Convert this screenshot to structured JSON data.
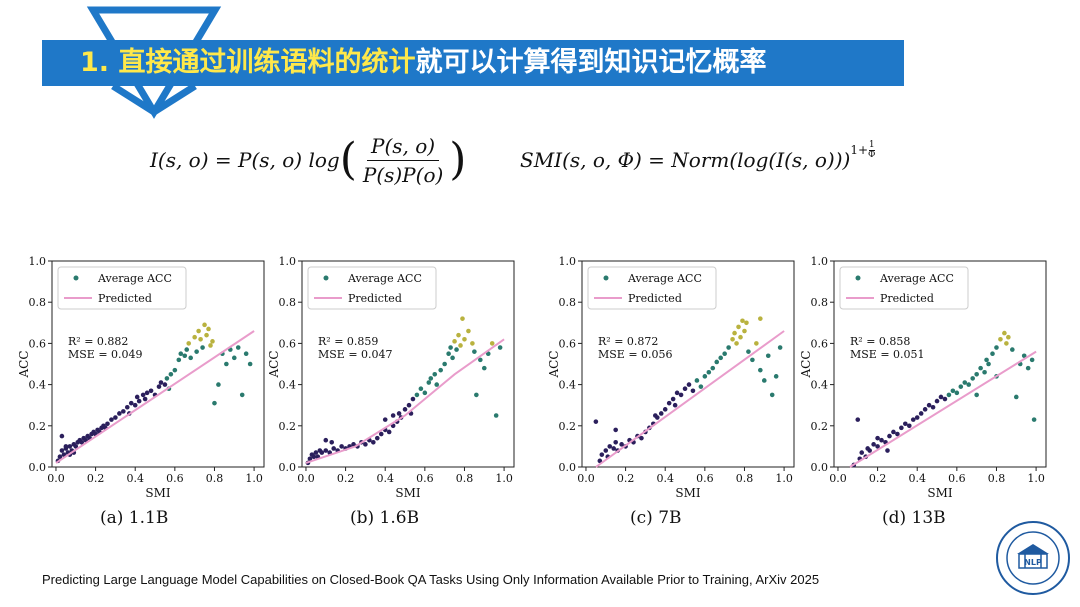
{
  "header": {
    "title_highlight": "1. 直接通过训练语料的统计",
    "title_rest": "就可以计算得到知识记忆概率"
  },
  "formulas": {
    "pmi": {
      "lhs": "I(s, o) = P(s, o) log",
      "numerator": "P(s, o)",
      "denominator": "P(s)P(o)"
    },
    "smi": {
      "lhs": "SMI(s, o, Φ) = Norm(log(I(s, o)))",
      "exponent_base": "1+",
      "exponent_num": "1",
      "exponent_den": "Φ"
    }
  },
  "footer": {
    "citation": "Predicting Large Language Model Capabilities on Closed-Book QA Tasks Using Only Information Available Prior to Training, ArXiv 2025"
  },
  "logo": {
    "text": "NLP"
  },
  "colors": {
    "banner": "#1f78c8",
    "highlight_text": "#ffe84a",
    "predicted_line": "#e99ccb",
    "point_low": "#2b1f5c",
    "point_mid": "#2a7a6e",
    "point_high": "#b9b23f"
  },
  "chart_data": [
    {
      "type": "scatter",
      "caption": "(a) 1.1B",
      "xlabel": "SMI",
      "ylabel": "ACC",
      "xlim": [
        -0.02,
        1.05
      ],
      "ylim": [
        0.0,
        1.0
      ],
      "xticks": [
        "0.0",
        "0.2",
        "0.4",
        "0.6",
        "0.8",
        "1.0"
      ],
      "yticks": [
        "0.0",
        "0.2",
        "0.4",
        "0.6",
        "0.8",
        "1.0"
      ],
      "legend": [
        "Average ACC",
        "Predicted"
      ],
      "legend_position": "top-left",
      "annotations": [
        "R² = 0.882",
        "MSE = 0.049"
      ],
      "predicted": [
        [
          0.0,
          0.02
        ],
        [
          1.0,
          0.66
        ]
      ],
      "points": [
        [
          0.01,
          0.03
        ],
        [
          0.02,
          0.05
        ],
        [
          0.03,
          0.08
        ],
        [
          0.04,
          0.06
        ],
        [
          0.05,
          0.09
        ],
        [
          0.06,
          0.07
        ],
        [
          0.07,
          0.1
        ],
        [
          0.08,
          0.08
        ],
        [
          0.09,
          0.11
        ],
        [
          0.1,
          0.1
        ],
        [
          0.11,
          0.12
        ],
        [
          0.12,
          0.13
        ],
        [
          0.13,
          0.12
        ],
        [
          0.14,
          0.14
        ],
        [
          0.15,
          0.13
        ],
        [
          0.16,
          0.15
        ],
        [
          0.17,
          0.14
        ],
        [
          0.18,
          0.16
        ],
        [
          0.19,
          0.17
        ],
        [
          0.2,
          0.16
        ],
        [
          0.21,
          0.18
        ],
        [
          0.22,
          0.17
        ],
        [
          0.23,
          0.19
        ],
        [
          0.24,
          0.2
        ],
        [
          0.25,
          0.19
        ],
        [
          0.26,
          0.21
        ],
        [
          0.28,
          0.23
        ],
        [
          0.3,
          0.24
        ],
        [
          0.32,
          0.26
        ],
        [
          0.34,
          0.27
        ],
        [
          0.36,
          0.29
        ],
        [
          0.37,
          0.26
        ],
        [
          0.38,
          0.31
        ],
        [
          0.4,
          0.3
        ],
        [
          0.41,
          0.34
        ],
        [
          0.42,
          0.32
        ],
        [
          0.44,
          0.35
        ],
        [
          0.45,
          0.33
        ],
        [
          0.46,
          0.36
        ],
        [
          0.48,
          0.37
        ],
        [
          0.5,
          0.35
        ],
        [
          0.52,
          0.39
        ],
        [
          0.53,
          0.41
        ],
        [
          0.55,
          0.4
        ],
        [
          0.56,
          0.43
        ],
        [
          0.57,
          0.38
        ],
        [
          0.58,
          0.45
        ],
        [
          0.6,
          0.47
        ],
        [
          0.62,
          0.52
        ],
        [
          0.63,
          0.55
        ],
        [
          0.65,
          0.54
        ],
        [
          0.66,
          0.57
        ],
        [
          0.67,
          0.6
        ],
        [
          0.68,
          0.53
        ],
        [
          0.7,
          0.63
        ],
        [
          0.71,
          0.56
        ],
        [
          0.72,
          0.66
        ],
        [
          0.73,
          0.62
        ],
        [
          0.74,
          0.58
        ],
        [
          0.75,
          0.69
        ],
        [
          0.76,
          0.64
        ],
        [
          0.77,
          0.67
        ],
        [
          0.78,
          0.59
        ],
        [
          0.79,
          0.61
        ],
        [
          0.8,
          0.31
        ],
        [
          0.82,
          0.4
        ],
        [
          0.84,
          0.55
        ],
        [
          0.86,
          0.5
        ],
        [
          0.88,
          0.57
        ],
        [
          0.9,
          0.53
        ],
        [
          0.92,
          0.58
        ],
        [
          0.94,
          0.35
        ],
        [
          0.96,
          0.55
        ],
        [
          0.98,
          0.5
        ],
        [
          0.03,
          0.15
        ],
        [
          0.05,
          0.1
        ],
        [
          0.07,
          0.06
        ],
        [
          0.09,
          0.07
        ]
      ]
    },
    {
      "type": "scatter",
      "caption": "(b) 1.6B",
      "xlabel": "SMI",
      "ylabel": "ACC",
      "xlim": [
        -0.02,
        1.05
      ],
      "ylim": [
        0.0,
        1.0
      ],
      "xticks": [
        "0.0",
        "0.2",
        "0.4",
        "0.6",
        "0.8",
        "1.0"
      ],
      "yticks": [
        "0.0",
        "0.2",
        "0.4",
        "0.6",
        "0.8",
        "1.0"
      ],
      "legend": [
        "Average ACC",
        "Predicted"
      ],
      "legend_position": "top-left",
      "annotations": [
        "R² = 0.859",
        "MSE = 0.047"
      ],
      "predicted": [
        [
          0.0,
          0.02
        ],
        [
          0.25,
          0.1
        ],
        [
          0.5,
          0.25
        ],
        [
          0.75,
          0.45
        ],
        [
          1.0,
          0.62
        ]
      ],
      "points": [
        [
          0.01,
          0.02
        ],
        [
          0.02,
          0.04
        ],
        [
          0.03,
          0.06
        ],
        [
          0.04,
          0.05
        ],
        [
          0.05,
          0.07
        ],
        [
          0.06,
          0.05
        ],
        [
          0.07,
          0.08
        ],
        [
          0.08,
          0.07
        ],
        [
          0.1,
          0.08
        ],
        [
          0.12,
          0.07
        ],
        [
          0.14,
          0.09
        ],
        [
          0.16,
          0.08
        ],
        [
          0.18,
          0.1
        ],
        [
          0.2,
          0.09
        ],
        [
          0.22,
          0.1
        ],
        [
          0.24,
          0.11
        ],
        [
          0.26,
          0.1
        ],
        [
          0.28,
          0.12
        ],
        [
          0.3,
          0.11
        ],
        [
          0.32,
          0.13
        ],
        [
          0.34,
          0.12
        ],
        [
          0.36,
          0.14
        ],
        [
          0.38,
          0.16
        ],
        [
          0.4,
          0.18
        ],
        [
          0.42,
          0.17
        ],
        [
          0.44,
          0.2
        ],
        [
          0.46,
          0.22
        ],
        [
          0.47,
          0.26
        ],
        [
          0.48,
          0.24
        ],
        [
          0.5,
          0.28
        ],
        [
          0.52,
          0.3
        ],
        [
          0.53,
          0.26
        ],
        [
          0.54,
          0.33
        ],
        [
          0.56,
          0.35
        ],
        [
          0.58,
          0.38
        ],
        [
          0.6,
          0.36
        ],
        [
          0.62,
          0.41
        ],
        [
          0.63,
          0.43
        ],
        [
          0.65,
          0.45
        ],
        [
          0.66,
          0.4
        ],
        [
          0.68,
          0.47
        ],
        [
          0.7,
          0.5
        ],
        [
          0.72,
          0.55
        ],
        [
          0.73,
          0.58
        ],
        [
          0.74,
          0.53
        ],
        [
          0.75,
          0.61
        ],
        [
          0.76,
          0.57
        ],
        [
          0.77,
          0.64
        ],
        [
          0.78,
          0.59
        ],
        [
          0.79,
          0.72
        ],
        [
          0.8,
          0.62
        ],
        [
          0.82,
          0.66
        ],
        [
          0.84,
          0.6
        ],
        [
          0.85,
          0.56
        ],
        [
          0.86,
          0.35
        ],
        [
          0.88,
          0.52
        ],
        [
          0.9,
          0.48
        ],
        [
          0.92,
          0.55
        ],
        [
          0.94,
          0.6
        ],
        [
          0.96,
          0.25
        ],
        [
          0.98,
          0.58
        ],
        [
          0.1,
          0.13
        ],
        [
          0.13,
          0.12
        ],
        [
          0.4,
          0.23
        ],
        [
          0.44,
          0.25
        ]
      ]
    },
    {
      "type": "scatter",
      "caption": "(c) 7B",
      "xlabel": "SMI",
      "ylabel": "ACC",
      "xlim": [
        -0.02,
        1.05
      ],
      "ylim": [
        0.0,
        1.0
      ],
      "xticks": [
        "0.0",
        "0.2",
        "0.4",
        "0.6",
        "0.8",
        "1.0"
      ],
      "yticks": [
        "0.0",
        "0.2",
        "0.4",
        "0.6",
        "0.8",
        "1.0"
      ],
      "legend": [
        "Average ACC",
        "Predicted"
      ],
      "legend_position": "top-left",
      "annotations": [
        "R² = 0.872",
        "MSE = 0.056"
      ],
      "predicted": [
        [
          0.05,
          0.0
        ],
        [
          1.0,
          0.66
        ]
      ],
      "points": [
        [
          0.05,
          0.22
        ],
        [
          0.07,
          0.03
        ],
        [
          0.08,
          0.06
        ],
        [
          0.1,
          0.08
        ],
        [
          0.11,
          0.05
        ],
        [
          0.12,
          0.1
        ],
        [
          0.14,
          0.09
        ],
        [
          0.15,
          0.12
        ],
        [
          0.16,
          0.08
        ],
        [
          0.18,
          0.11
        ],
        [
          0.2,
          0.1
        ],
        [
          0.22,
          0.13
        ],
        [
          0.24,
          0.12
        ],
        [
          0.26,
          0.15
        ],
        [
          0.28,
          0.14
        ],
        [
          0.3,
          0.17
        ],
        [
          0.32,
          0.19
        ],
        [
          0.34,
          0.21
        ],
        [
          0.36,
          0.24
        ],
        [
          0.38,
          0.26
        ],
        [
          0.4,
          0.28
        ],
        [
          0.42,
          0.31
        ],
        [
          0.44,
          0.33
        ],
        [
          0.46,
          0.36
        ],
        [
          0.48,
          0.35
        ],
        [
          0.5,
          0.38
        ],
        [
          0.52,
          0.4
        ],
        [
          0.54,
          0.37
        ],
        [
          0.56,
          0.42
        ],
        [
          0.58,
          0.39
        ],
        [
          0.6,
          0.44
        ],
        [
          0.62,
          0.46
        ],
        [
          0.64,
          0.48
        ],
        [
          0.66,
          0.51
        ],
        [
          0.68,
          0.53
        ],
        [
          0.7,
          0.55
        ],
        [
          0.72,
          0.58
        ],
        [
          0.74,
          0.62
        ],
        [
          0.75,
          0.65
        ],
        [
          0.76,
          0.6
        ],
        [
          0.77,
          0.68
        ],
        [
          0.78,
          0.63
        ],
        [
          0.79,
          0.71
        ],
        [
          0.8,
          0.66
        ],
        [
          0.81,
          0.7
        ],
        [
          0.82,
          0.56
        ],
        [
          0.84,
          0.52
        ],
        [
          0.86,
          0.6
        ],
        [
          0.88,
          0.47
        ],
        [
          0.9,
          0.42
        ],
        [
          0.92,
          0.54
        ],
        [
          0.94,
          0.35
        ],
        [
          0.96,
          0.44
        ],
        [
          0.98,
          0.58
        ],
        [
          0.88,
          0.72
        ],
        [
          0.15,
          0.18
        ],
        [
          0.35,
          0.25
        ],
        [
          0.45,
          0.3
        ]
      ]
    },
    {
      "type": "scatter",
      "caption": "(d) 13B",
      "xlabel": "SMI",
      "ylabel": "ACC",
      "xlim": [
        -0.02,
        1.05
      ],
      "ylim": [
        0.0,
        1.0
      ],
      "xticks": [
        "0.0",
        "0.2",
        "0.4",
        "0.6",
        "0.8",
        "1.0"
      ],
      "yticks": [
        "0.0",
        "0.2",
        "0.4",
        "0.6",
        "0.8",
        "1.0"
      ],
      "legend": [
        "Average ACC",
        "Predicted"
      ],
      "legend_position": "top-left",
      "annotations": [
        "R² = 0.858",
        "MSE = 0.051"
      ],
      "predicted": [
        [
          0.06,
          0.0
        ],
        [
          1.0,
          0.56
        ]
      ],
      "points": [
        [
          0.08,
          0.01
        ],
        [
          0.1,
          0.23
        ],
        [
          0.11,
          0.04
        ],
        [
          0.12,
          0.07
        ],
        [
          0.14,
          0.05
        ],
        [
          0.15,
          0.09
        ],
        [
          0.16,
          0.08
        ],
        [
          0.18,
          0.11
        ],
        [
          0.2,
          0.1
        ],
        [
          0.22,
          0.13
        ],
        [
          0.24,
          0.12
        ],
        [
          0.26,
          0.15
        ],
        [
          0.28,
          0.17
        ],
        [
          0.3,
          0.16
        ],
        [
          0.32,
          0.19
        ],
        [
          0.34,
          0.21
        ],
        [
          0.36,
          0.2
        ],
        [
          0.38,
          0.23
        ],
        [
          0.4,
          0.24
        ],
        [
          0.42,
          0.26
        ],
        [
          0.44,
          0.28
        ],
        [
          0.46,
          0.3
        ],
        [
          0.48,
          0.29
        ],
        [
          0.5,
          0.32
        ],
        [
          0.52,
          0.34
        ],
        [
          0.54,
          0.33
        ],
        [
          0.56,
          0.35
        ],
        [
          0.58,
          0.37
        ],
        [
          0.6,
          0.36
        ],
        [
          0.62,
          0.39
        ],
        [
          0.64,
          0.41
        ],
        [
          0.66,
          0.4
        ],
        [
          0.68,
          0.43
        ],
        [
          0.7,
          0.45
        ],
        [
          0.72,
          0.48
        ],
        [
          0.74,
          0.46
        ],
        [
          0.75,
          0.52
        ],
        [
          0.76,
          0.5
        ],
        [
          0.78,
          0.55
        ],
        [
          0.8,
          0.58
        ],
        [
          0.82,
          0.62
        ],
        [
          0.84,
          0.65
        ],
        [
          0.85,
          0.6
        ],
        [
          0.86,
          0.63
        ],
        [
          0.88,
          0.57
        ],
        [
          0.9,
          0.34
        ],
        [
          0.92,
          0.5
        ],
        [
          0.94,
          0.54
        ],
        [
          0.96,
          0.48
        ],
        [
          0.98,
          0.52
        ],
        [
          0.99,
          0.23
        ],
        [
          0.8,
          0.44
        ],
        [
          0.7,
          0.35
        ],
        [
          0.2,
          0.14
        ],
        [
          0.25,
          0.08
        ]
      ]
    }
  ]
}
